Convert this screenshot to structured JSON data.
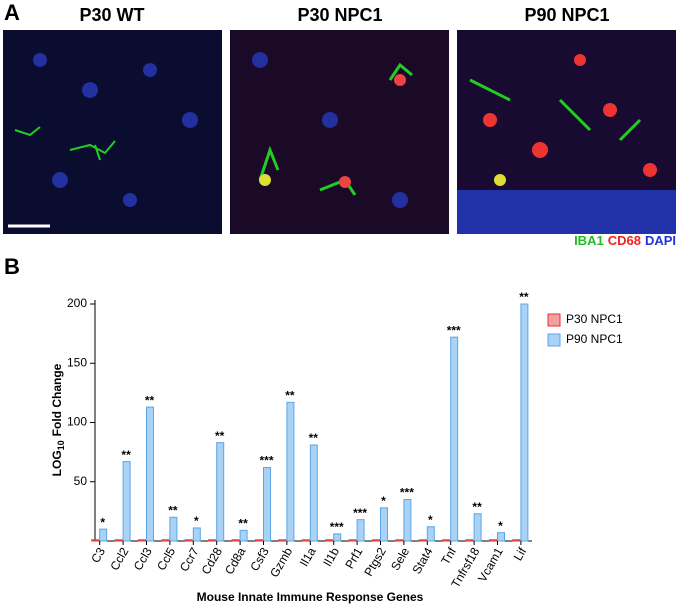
{
  "panel_a": {
    "letter": "A",
    "titles": [
      "P30 WT",
      "P30 NPC1",
      "P90 NPC1"
    ],
    "stains": [
      {
        "name": "IBA1",
        "color": "#22bb22"
      },
      {
        "name": "CD68",
        "color": "#ee2222"
      },
      {
        "name": "DAPI",
        "color": "#2233dd"
      }
    ]
  },
  "chart_data": {
    "type": "bar",
    "letter": "B",
    "ylabel": {
      "main": "LOG",
      "sub": "10",
      "rest": "Fold Change"
    },
    "xlabel": "Mouse Innate Immune Response Genes",
    "categories": [
      "C3",
      "Ccl2",
      "Ccl3",
      "Ccl5",
      "Ccr7",
      "Cd28",
      "Cd8a",
      "Csf3",
      "Gzmb",
      "Il1a",
      "Il1b",
      "Prf1",
      "Ptgs2",
      "Sele",
      "Stat4",
      "Tnf",
      "Tnfrsf18",
      "Vcam1",
      "Lif"
    ],
    "series": [
      {
        "name": "P30 NPC1",
        "color": "#f4a0a0",
        "stroke": "#e03030",
        "values": [
          1,
          1,
          1,
          1,
          1,
          1,
          1,
          1,
          1,
          1,
          1,
          1,
          1,
          1,
          1,
          1,
          1,
          1,
          1
        ]
      },
      {
        "name": "P90 NPC1",
        "color": "#a9d2f5",
        "stroke": "#5aa6e8",
        "values": [
          10,
          67,
          113,
          20,
          11,
          83,
          9,
          62,
          117,
          81,
          6,
          18,
          28,
          35,
          12,
          172,
          23,
          7,
          200
        ]
      }
    ],
    "significance": [
      "*",
      "**",
      "**",
      "**",
      "*",
      "**",
      "**",
      "***",
      "**",
      "**",
      "***",
      "***",
      "*",
      "***",
      "*",
      "***",
      "**",
      "*",
      "**"
    ],
    "ylim": [
      0,
      200
    ],
    "yticks": [
      50,
      100,
      150,
      200
    ]
  }
}
